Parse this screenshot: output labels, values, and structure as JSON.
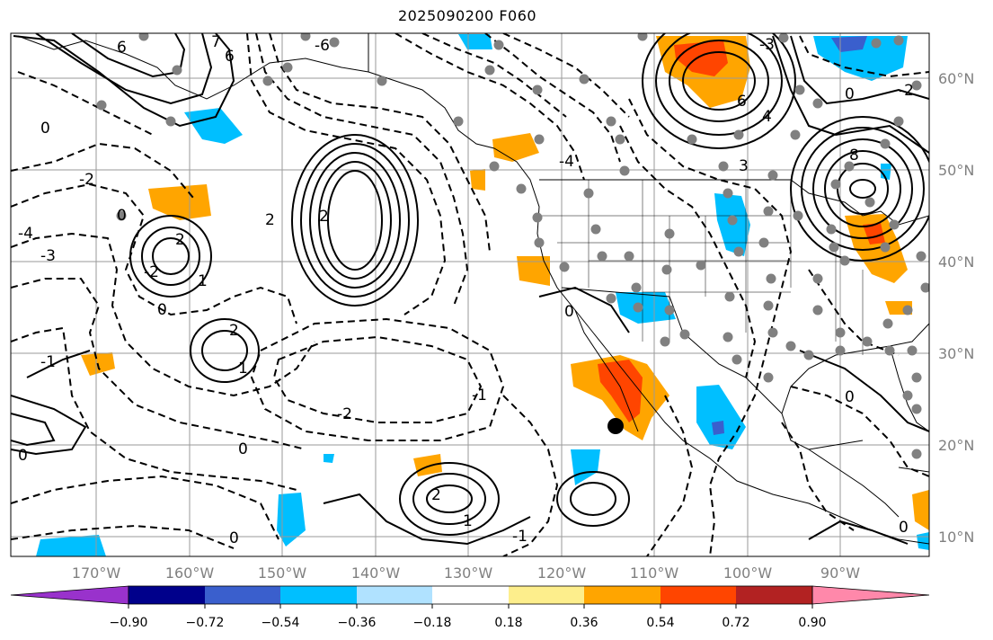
{
  "title": "2025090200 F060",
  "lon_labels": [
    "170°W",
    "160°W",
    "150°W",
    "140°W",
    "130°W",
    "120°W",
    "110°W",
    "100°W",
    "90°W"
  ],
  "lat_labels": [
    "60°N",
    "50°N",
    "40°N",
    "30°N",
    "20°N",
    "10°N"
  ],
  "colorbar": {
    "ticks": [
      "−0.90",
      "−0.72",
      "−0.54",
      "−0.36",
      "−0.18",
      "0.18",
      "0.36",
      "0.54",
      "0.72",
      "0.90"
    ],
    "colors": [
      "#9932cc",
      "#00008b",
      "#3a5fcd",
      "#00bfff",
      "#b0e2ff",
      "#ffffff",
      "#fdee8c",
      "#ffa500",
      "#ff4500",
      "#b22222",
      "#ff88aa"
    ]
  },
  "marker": {
    "label": "",
    "color": "#000000"
  },
  "contour_labels": [
    "6",
    "7",
    "6",
    "-6",
    "0",
    "-2",
    "0",
    "-4",
    "-3",
    "2",
    "-2",
    "2",
    "0",
    "1",
    "2",
    "-1",
    "0",
    "1",
    "0",
    "2",
    "-2",
    "-1",
    "0",
    "-1",
    "2",
    "1",
    "0",
    "6",
    "3",
    "-4",
    "-3",
    "4",
    "0",
    "8",
    "-2",
    "0",
    "0"
  ]
}
